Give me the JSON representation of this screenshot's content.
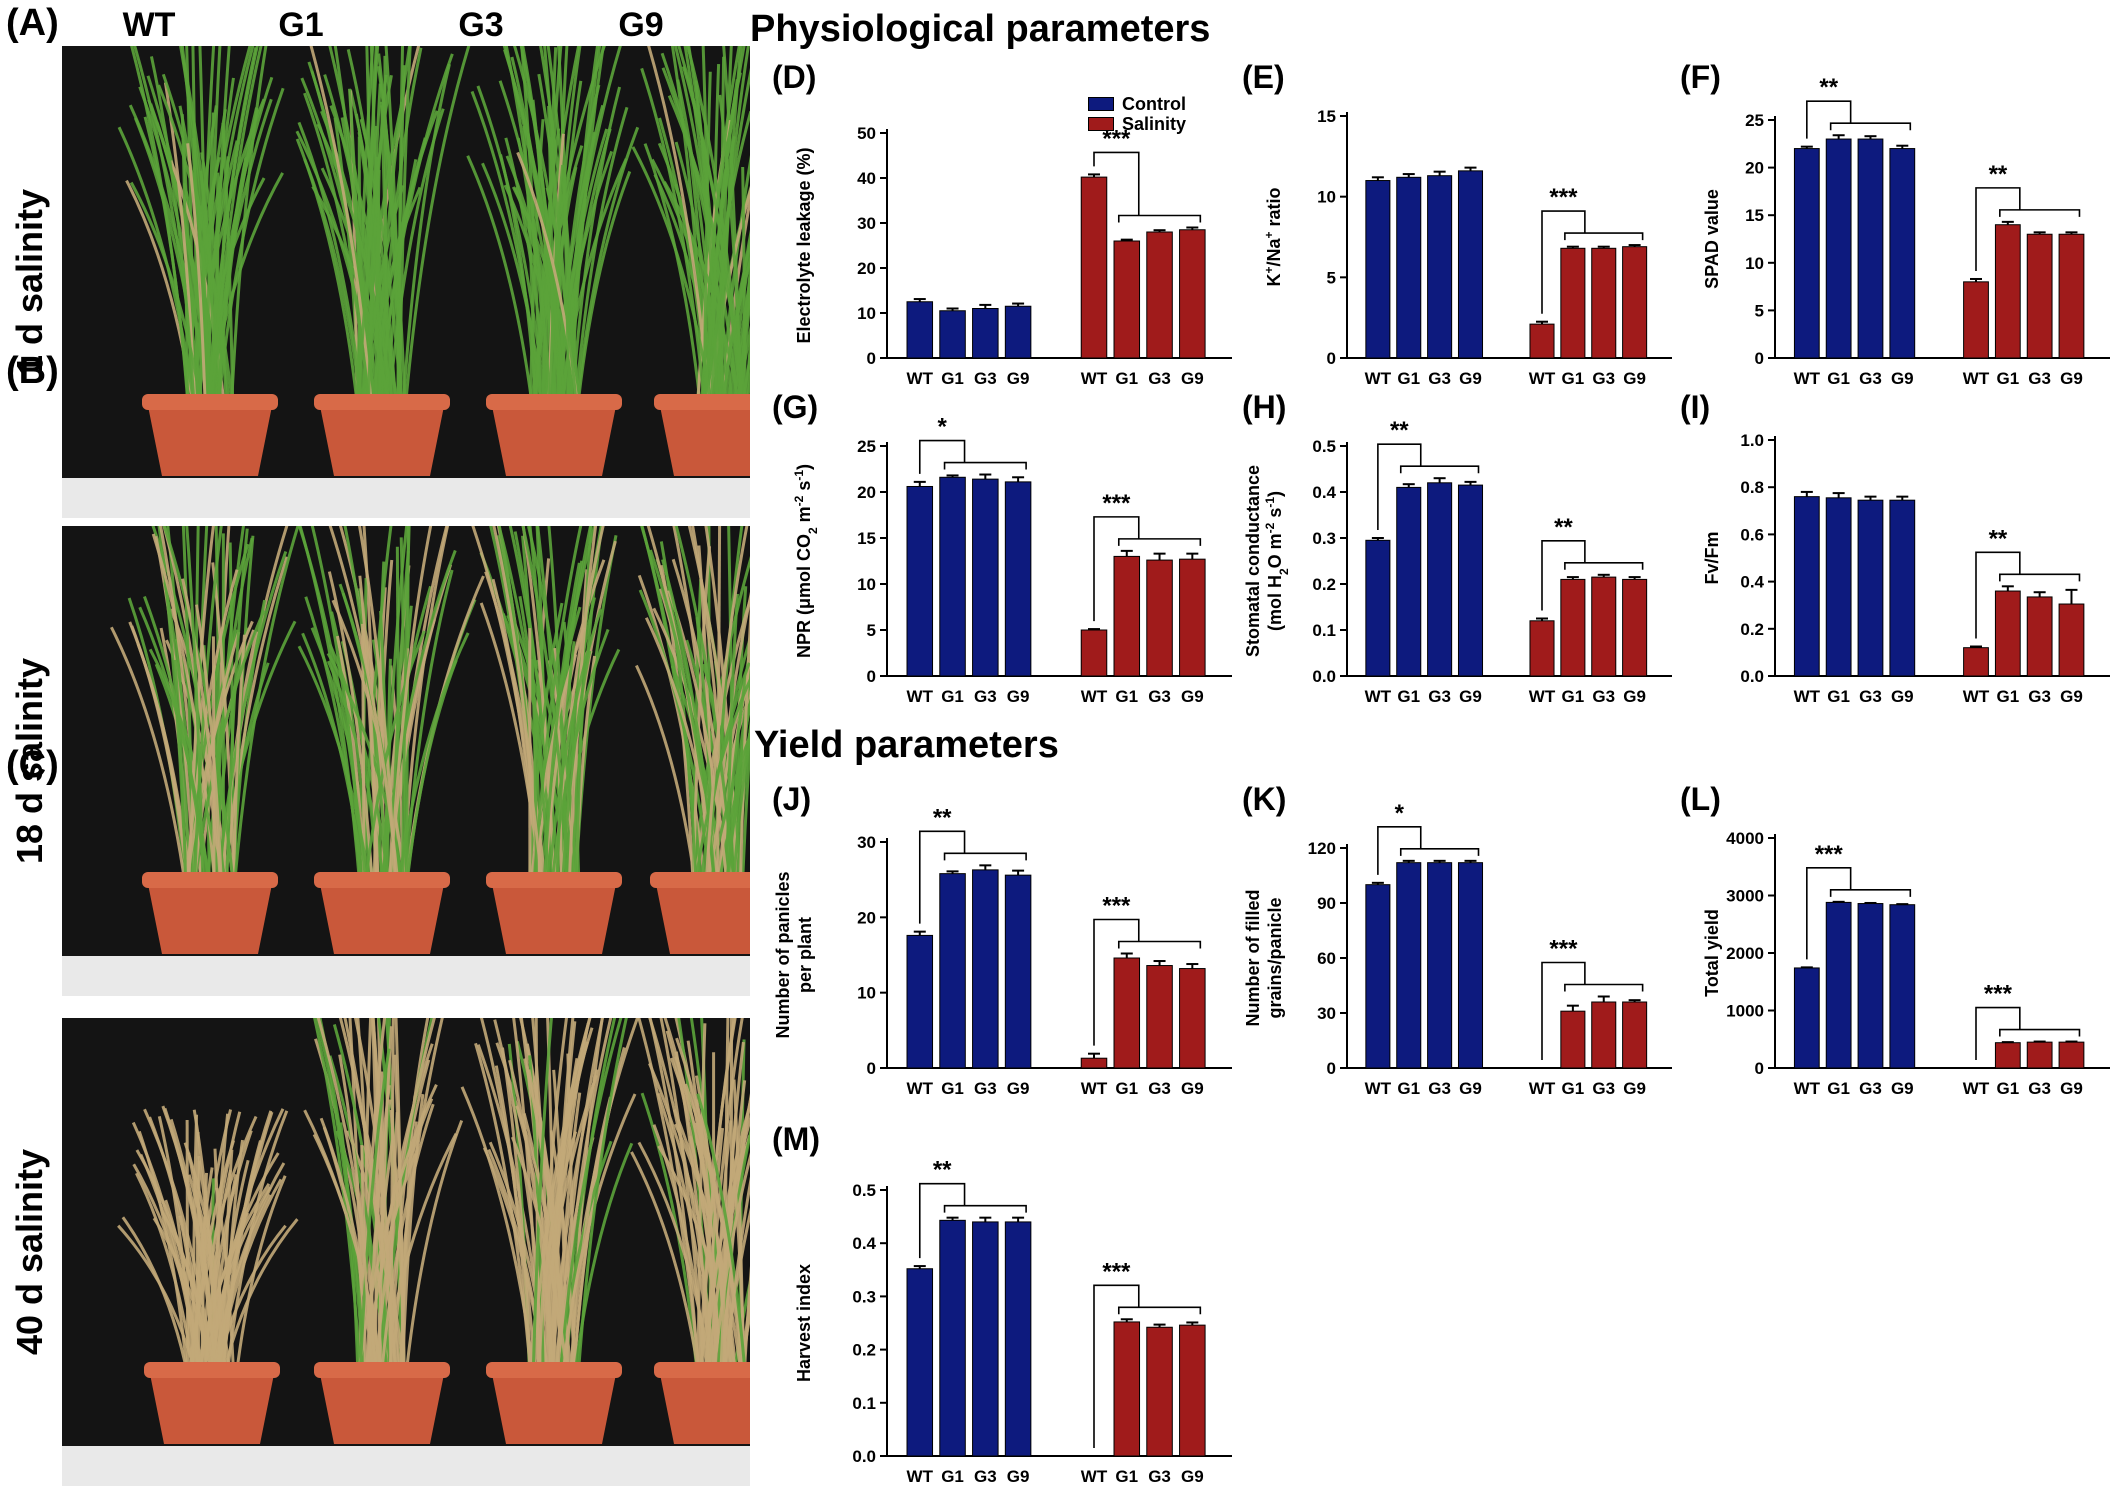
{
  "panel_letters": {
    "A": "(A)",
    "B": "(B)",
    "C": "(C)"
  },
  "genotypes": [
    "WT",
    "G1",
    "G3",
    "G9"
  ],
  "photos": [
    {
      "salinity_label": "1 d salinity"
    },
    {
      "salinity_label": "18 d salinity"
    },
    {
      "salinity_label": "40 d salinity"
    }
  ],
  "sections": {
    "physiological": "Physiological parameters",
    "yield": "Yield parameters"
  },
  "legend": {
    "control_label": "Control",
    "salinity_label": "Salinity"
  },
  "colors": {
    "control": "#0d1a7e",
    "salinity": "#a01b1b",
    "pot": "#c9583a",
    "background": "#141414",
    "leaf": "#5ba33a",
    "dry_leaf": "#c2a878"
  },
  "chart_data": [
    {
      "id": "D",
      "panel": "(D)",
      "type": "bar",
      "ylabel": "Electrolyte leakage (%)",
      "ylim": [
        0,
        50
      ],
      "yticks": [
        0,
        10,
        20,
        30,
        40,
        50
      ],
      "categories": [
        "WT",
        "G1",
        "G3",
        "G9"
      ],
      "series": [
        {
          "name": "Control",
          "values": [
            12.5,
            10.5,
            11,
            11.5
          ],
          "errors": [
            0.6,
            0.5,
            0.8,
            0.6
          ]
        },
        {
          "name": "Salinity",
          "values": [
            40.2,
            26,
            28,
            28.5
          ],
          "errors": [
            0.6,
            0.3,
            0.4,
            0.5
          ]
        }
      ],
      "annotations": [
        {
          "group": 1,
          "text": "***"
        }
      ]
    },
    {
      "id": "E",
      "panel": "(E)",
      "type": "bar",
      "ylabel": "K+/Na+ ratio",
      "ylim": [
        0,
        15
      ],
      "yticks": [
        0,
        5,
        10,
        15
      ],
      "categories": [
        "WT",
        "G1",
        "G3",
        "G9"
      ],
      "series": [
        {
          "name": "Control",
          "values": [
            11,
            11.2,
            11.3,
            11.6
          ],
          "errors": [
            0.2,
            0.2,
            0.25,
            0.2
          ]
        },
        {
          "name": "Salinity",
          "values": [
            2.1,
            6.8,
            6.8,
            6.9
          ],
          "errors": [
            0.15,
            0.1,
            0.1,
            0.1
          ]
        }
      ],
      "annotations": [
        {
          "group": 1,
          "text": "***"
        }
      ]
    },
    {
      "id": "F",
      "panel": "(F)",
      "type": "bar",
      "ylabel": "SPAD value",
      "ylim": [
        0,
        25
      ],
      "yticks": [
        0,
        5,
        10,
        15,
        20,
        25
      ],
      "categories": [
        "WT",
        "G1",
        "G3",
        "G9"
      ],
      "series": [
        {
          "name": "Control",
          "values": [
            22,
            23,
            23,
            22
          ],
          "errors": [
            0.2,
            0.4,
            0.3,
            0.3
          ]
        },
        {
          "name": "Salinity",
          "values": [
            8,
            14,
            13,
            13
          ],
          "errors": [
            0.3,
            0.3,
            0.2,
            0.2
          ]
        }
      ],
      "annotations": [
        {
          "group": 0,
          "text": "**"
        },
        {
          "group": 1,
          "text": "**"
        }
      ]
    },
    {
      "id": "G",
      "panel": "(G)",
      "type": "bar",
      "ylabel": "NPR (μmol CO2 m-2 s-1)",
      "ylim": [
        0,
        25
      ],
      "yticks": [
        0,
        5,
        10,
        15,
        20,
        25
      ],
      "categories": [
        "WT",
        "G1",
        "G3",
        "G9"
      ],
      "series": [
        {
          "name": "Control",
          "values": [
            20.6,
            21.6,
            21.4,
            21.1
          ],
          "errors": [
            0.5,
            0.2,
            0.5,
            0.5
          ]
        },
        {
          "name": "Salinity",
          "values": [
            5,
            13,
            12.6,
            12.7
          ],
          "errors": [
            0.1,
            0.6,
            0.7,
            0.6
          ]
        }
      ],
      "annotations": [
        {
          "group": 0,
          "text": "*"
        },
        {
          "group": 1,
          "text": "***"
        }
      ]
    },
    {
      "id": "H",
      "panel": "(H)",
      "type": "bar",
      "ylabel": "Stomatal conductance (mol H2O m-2 s-1)",
      "ylim": [
        0,
        0.5
      ],
      "yticks": [
        0.0,
        0.1,
        0.2,
        0.3,
        0.4,
        0.5
      ],
      "categories": [
        "WT",
        "G1",
        "G3",
        "G9"
      ],
      "series": [
        {
          "name": "Control",
          "values": [
            0.295,
            0.41,
            0.42,
            0.415
          ],
          "errors": [
            0.005,
            0.007,
            0.01,
            0.007
          ]
        },
        {
          "name": "Salinity",
          "values": [
            0.12,
            0.21,
            0.215,
            0.21
          ],
          "errors": [
            0.005,
            0.005,
            0.005,
            0.005
          ]
        }
      ],
      "annotations": [
        {
          "group": 0,
          "text": "**"
        },
        {
          "group": 1,
          "text": "**"
        }
      ]
    },
    {
      "id": "I",
      "panel": "(I)",
      "type": "bar",
      "ylabel": "Fv/Fm",
      "ylim": [
        0,
        1.0
      ],
      "yticks": [
        0.0,
        0.2,
        0.4,
        0.6,
        0.8,
        1.0
      ],
      "categories": [
        "WT",
        "G1",
        "G3",
        "G9"
      ],
      "series": [
        {
          "name": "Control",
          "values": [
            0.76,
            0.755,
            0.745,
            0.745
          ],
          "errors": [
            0.02,
            0.02,
            0.015,
            0.015
          ]
        },
        {
          "name": "Salinity",
          "values": [
            0.12,
            0.36,
            0.335,
            0.305
          ],
          "errors": [
            0.005,
            0.02,
            0.02,
            0.06
          ]
        }
      ],
      "annotations": [
        {
          "group": 1,
          "text": "**"
        }
      ]
    },
    {
      "id": "J",
      "panel": "(J)",
      "type": "bar",
      "ylabel": "Number of panicles per plant",
      "ylim": [
        0,
        30
      ],
      "yticks": [
        0,
        10,
        20,
        30
      ],
      "categories": [
        "WT",
        "G1",
        "G3",
        "G9"
      ],
      "series": [
        {
          "name": "Control",
          "values": [
            17.6,
            25.8,
            26.3,
            25.6
          ],
          "errors": [
            0.5,
            0.3,
            0.6,
            0.6
          ]
        },
        {
          "name": "Salinity",
          "values": [
            1.3,
            14.6,
            13.6,
            13.2
          ],
          "errors": [
            0.6,
            0.6,
            0.6,
            0.6
          ]
        }
      ],
      "annotations": [
        {
          "group": 0,
          "text": "**"
        },
        {
          "group": 1,
          "text": "***"
        }
      ]
    },
    {
      "id": "K",
      "panel": "(K)",
      "type": "bar",
      "ylabel": "Number of filled grains/panicle",
      "ylim": [
        0,
        120
      ],
      "yticks": [
        0,
        30,
        60,
        90,
        120
      ],
      "categories": [
        "WT",
        "G1",
        "G3",
        "G9"
      ],
      "series": [
        {
          "name": "Control",
          "values": [
            100,
            112,
            112,
            112
          ],
          "errors": [
            1,
            1,
            1,
            1
          ]
        },
        {
          "name": "Salinity",
          "values": [
            0,
            31,
            36,
            36
          ],
          "errors": [
            0,
            3,
            3,
            1
          ]
        }
      ],
      "annotations": [
        {
          "group": 0,
          "text": "*"
        },
        {
          "group": 1,
          "text": "***"
        }
      ]
    },
    {
      "id": "L",
      "panel": "(L)",
      "type": "bar",
      "ylabel": "Total yield",
      "ylim": [
        0,
        4000
      ],
      "yticks": [
        0,
        1000,
        2000,
        3000,
        4000
      ],
      "categories": [
        "WT",
        "G1",
        "G3",
        "G9"
      ],
      "series": [
        {
          "name": "Control",
          "values": [
            1740,
            2880,
            2860,
            2840
          ],
          "errors": [
            10,
            10,
            10,
            10
          ]
        },
        {
          "name": "Salinity",
          "values": [
            0,
            440,
            450,
            450
          ],
          "errors": [
            0,
            10,
            10,
            10
          ]
        }
      ],
      "annotations": [
        {
          "group": 0,
          "text": "***"
        },
        {
          "group": 1,
          "text": "***"
        }
      ]
    },
    {
      "id": "M",
      "panel": "(M)",
      "type": "bar",
      "ylabel": "Harvest index",
      "ylim": [
        0,
        0.5
      ],
      "yticks": [
        0.0,
        0.1,
        0.2,
        0.3,
        0.4,
        0.5
      ],
      "categories": [
        "WT",
        "G1",
        "G3",
        "G9"
      ],
      "series": [
        {
          "name": "Control",
          "values": [
            0.352,
            0.443,
            0.44,
            0.44
          ],
          "errors": [
            0.005,
            0.005,
            0.008,
            0.008
          ]
        },
        {
          "name": "Salinity",
          "values": [
            0,
            0.252,
            0.242,
            0.246
          ],
          "errors": [
            0,
            0.005,
            0.005,
            0.005
          ]
        }
      ],
      "annotations": [
        {
          "group": 0,
          "text": "**"
        },
        {
          "group": 1,
          "text": "***"
        }
      ]
    }
  ]
}
